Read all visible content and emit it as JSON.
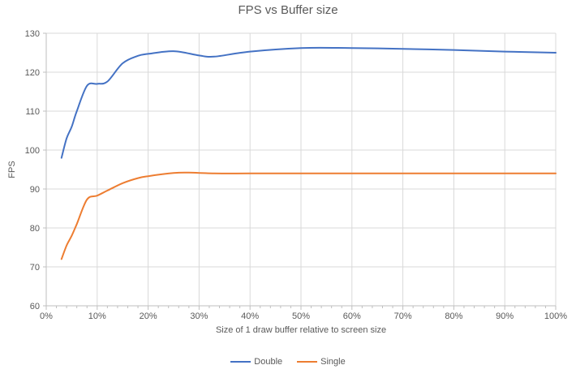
{
  "chart_data": {
    "type": "line",
    "title": "FPS vs Buffer size",
    "xlabel": "Size of 1 draw buffer relative to screen size",
    "ylabel": "FPS",
    "xlim": [
      0,
      100
    ],
    "ylim": [
      60,
      130
    ],
    "x_ticks": [
      0,
      10,
      20,
      30,
      40,
      50,
      60,
      70,
      80,
      90,
      100
    ],
    "x_tick_labels": [
      "0%",
      "10%",
      "20%",
      "30%",
      "40%",
      "50%",
      "60%",
      "70%",
      "80%",
      "90%",
      "100%"
    ],
    "x_minor_tick_step": 2,
    "y_ticks": [
      60,
      70,
      80,
      90,
      100,
      110,
      120,
      130
    ],
    "y_tick_labels": [
      "60",
      "70",
      "80",
      "90",
      "100",
      "110",
      "120",
      "130"
    ],
    "grid": true,
    "legend_position": "bottom",
    "line_smoothing": true,
    "series": [
      {
        "name": "Double",
        "color": "#4472C4",
        "points": [
          [
            3,
            98
          ],
          [
            4,
            103
          ],
          [
            5,
            106
          ],
          [
            6,
            110
          ],
          [
            8,
            116.5
          ],
          [
            10,
            117
          ],
          [
            12,
            117.6
          ],
          [
            15,
            122.3
          ],
          [
            18,
            124.2
          ],
          [
            20,
            124.7
          ],
          [
            25,
            125.4
          ],
          [
            30,
            124.3
          ],
          [
            33,
            124
          ],
          [
            40,
            125.3
          ],
          [
            50,
            126.2
          ],
          [
            60,
            126.2
          ],
          [
            70,
            126
          ],
          [
            80,
            125.7
          ],
          [
            90,
            125.3
          ],
          [
            100,
            125
          ]
        ]
      },
      {
        "name": "Single",
        "color": "#ED7D31",
        "points": [
          [
            3,
            72
          ],
          [
            4,
            75.5
          ],
          [
            5,
            78
          ],
          [
            6,
            81
          ],
          [
            8,
            87.3
          ],
          [
            10,
            88.3
          ],
          [
            12,
            89.6
          ],
          [
            15,
            91.5
          ],
          [
            18,
            92.8
          ],
          [
            20,
            93.3
          ],
          [
            25,
            94.1
          ],
          [
            28,
            94.2
          ],
          [
            33,
            94
          ],
          [
            40,
            94
          ],
          [
            50,
            94
          ],
          [
            60,
            94
          ],
          [
            70,
            94
          ],
          [
            80,
            94
          ],
          [
            90,
            94
          ],
          [
            100,
            94
          ]
        ]
      }
    ],
    "colors": {
      "grid": "#D9D9D9",
      "axis": "#BFBFBF",
      "tick": "#BFBFBF",
      "text": "#595959",
      "title": "#595959",
      "background": "#FFFFFF"
    }
  }
}
